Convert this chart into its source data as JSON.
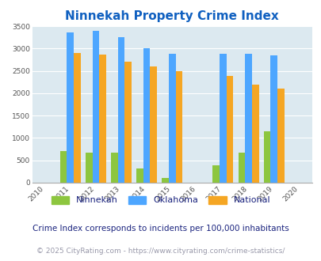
{
  "title": "Ninnekah Property Crime Index",
  "all_years": [
    2010,
    2011,
    2012,
    2013,
    2014,
    2015,
    2016,
    2017,
    2018,
    2019,
    2020
  ],
  "data_years": [
    2011,
    2012,
    2013,
    2014,
    2015,
    2017,
    2018,
    2019
  ],
  "ninnekah": [
    700,
    680,
    670,
    310,
    100,
    390,
    670,
    1150
  ],
  "oklahoma": [
    3360,
    3400,
    3260,
    3000,
    2890,
    2880,
    2880,
    2840
  ],
  "national": [
    2900,
    2860,
    2710,
    2590,
    2490,
    2380,
    2200,
    2100
  ],
  "ninnekah_color": "#8dc63f",
  "oklahoma_color": "#4da6ff",
  "national_color": "#f5a623",
  "background_color": "#dce9f0",
  "title_color": "#1060c0",
  "ylabel_max": 3500,
  "yticks": [
    0,
    500,
    1000,
    1500,
    2000,
    2500,
    3000,
    3500
  ],
  "note": "Crime Index corresponds to incidents per 100,000 inhabitants",
  "footer": "© 2025 CityRating.com - https://www.cityrating.com/crime-statistics/",
  "note_color": "#1a237e",
  "footer_color": "#9999aa",
  "bar_width": 0.27
}
